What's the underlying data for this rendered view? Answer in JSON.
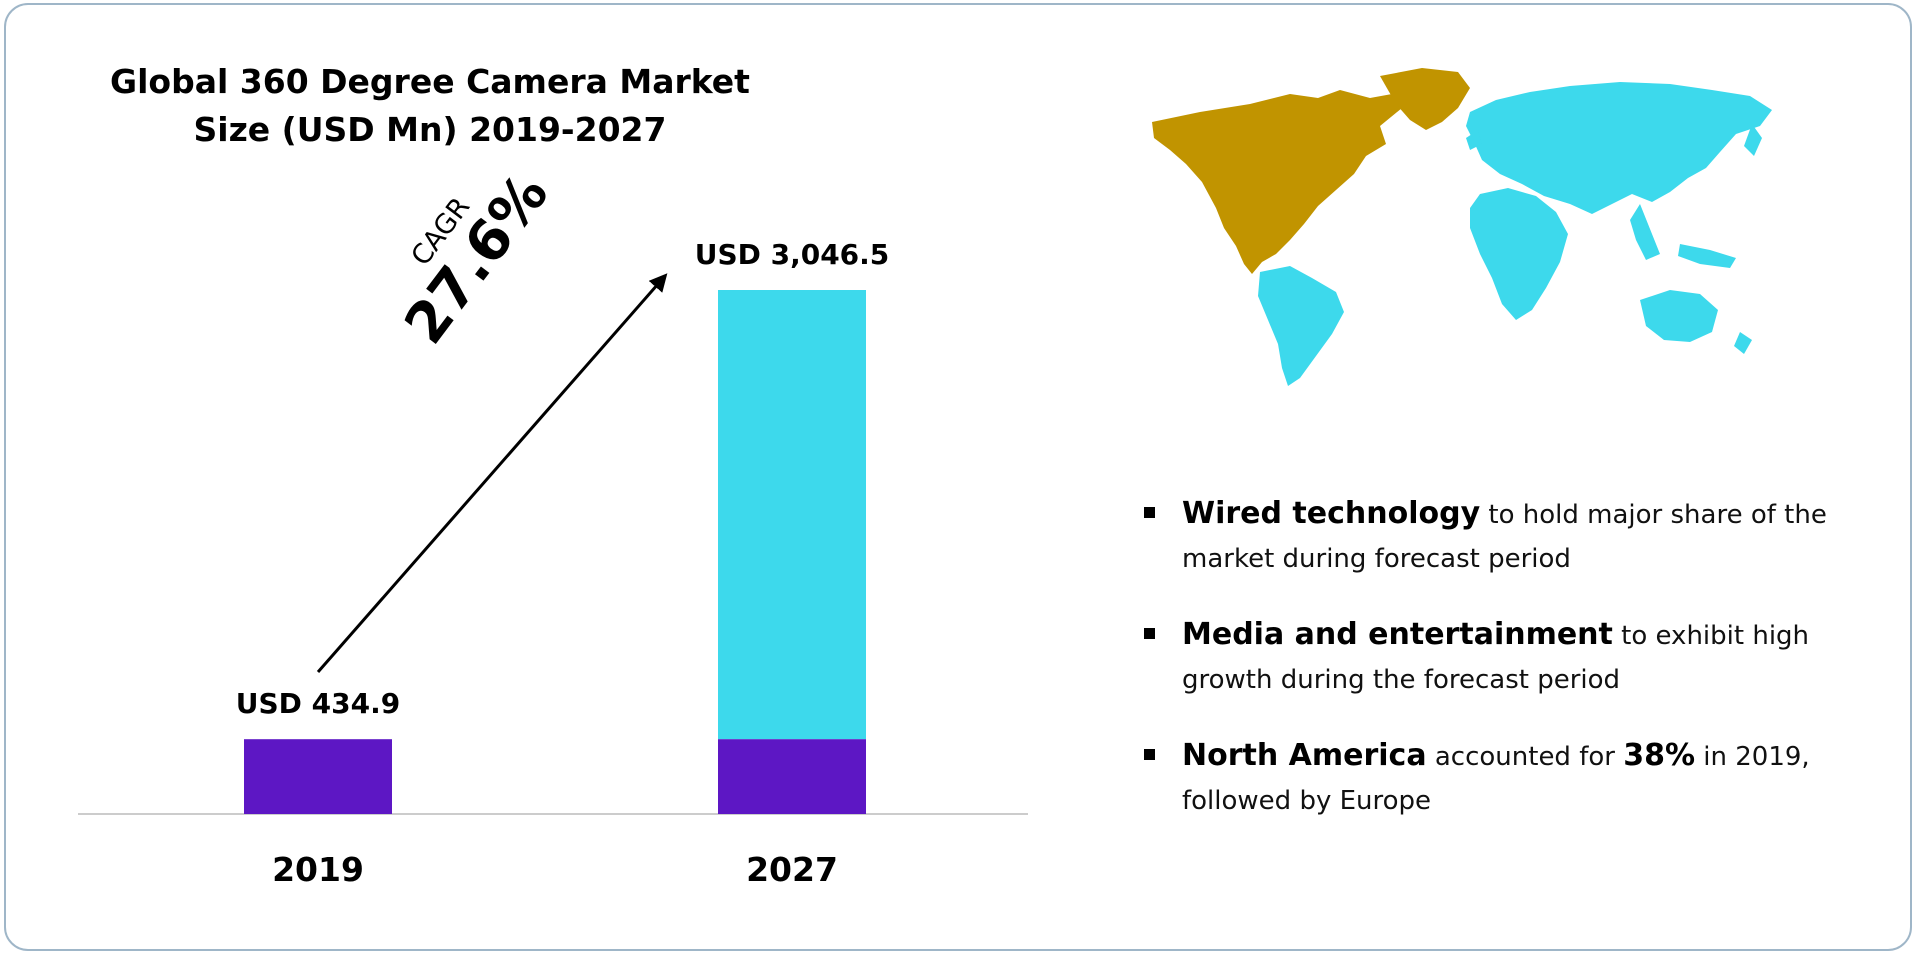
{
  "title_lines": [
    "Global 360 Degree Camera Market",
    "Size (USD Mn) 2019-2027"
  ],
  "cagr": {
    "label": "CAGR",
    "value": "27.6%"
  },
  "chart_data": {
    "type": "bar",
    "title": "Global 360 Degree Camera Market Size (USD Mn) 2019-2027",
    "categories": [
      "2019",
      "2027"
    ],
    "values": [
      434.9,
      3046.5
    ],
    "value_labels": [
      "USD 434.9",
      "USD 3,046.5"
    ],
    "xlabel": "",
    "ylabel": "",
    "ylim": [
      0,
      3046.5
    ],
    "grid": false,
    "colors": {
      "base": "#5d17c4",
      "growth": "#3dd9ec",
      "axis": "#cccccc",
      "arrow": "#000000"
    }
  },
  "map": {
    "highlight_region": "North America",
    "highlight_color": "#c19400",
    "other_color": "#3dd9ec"
  },
  "key_points": [
    {
      "bold": "Wired technology",
      "text": " to hold major share of the market during forecast period"
    },
    {
      "bold": "Media and entertainment",
      "text": " to exhibit high growth during the forecast period"
    },
    {
      "bold": "North America",
      "text": " accounted for ",
      "bold2": "38%",
      "text2": " in 2019, followed by Europe"
    }
  ]
}
